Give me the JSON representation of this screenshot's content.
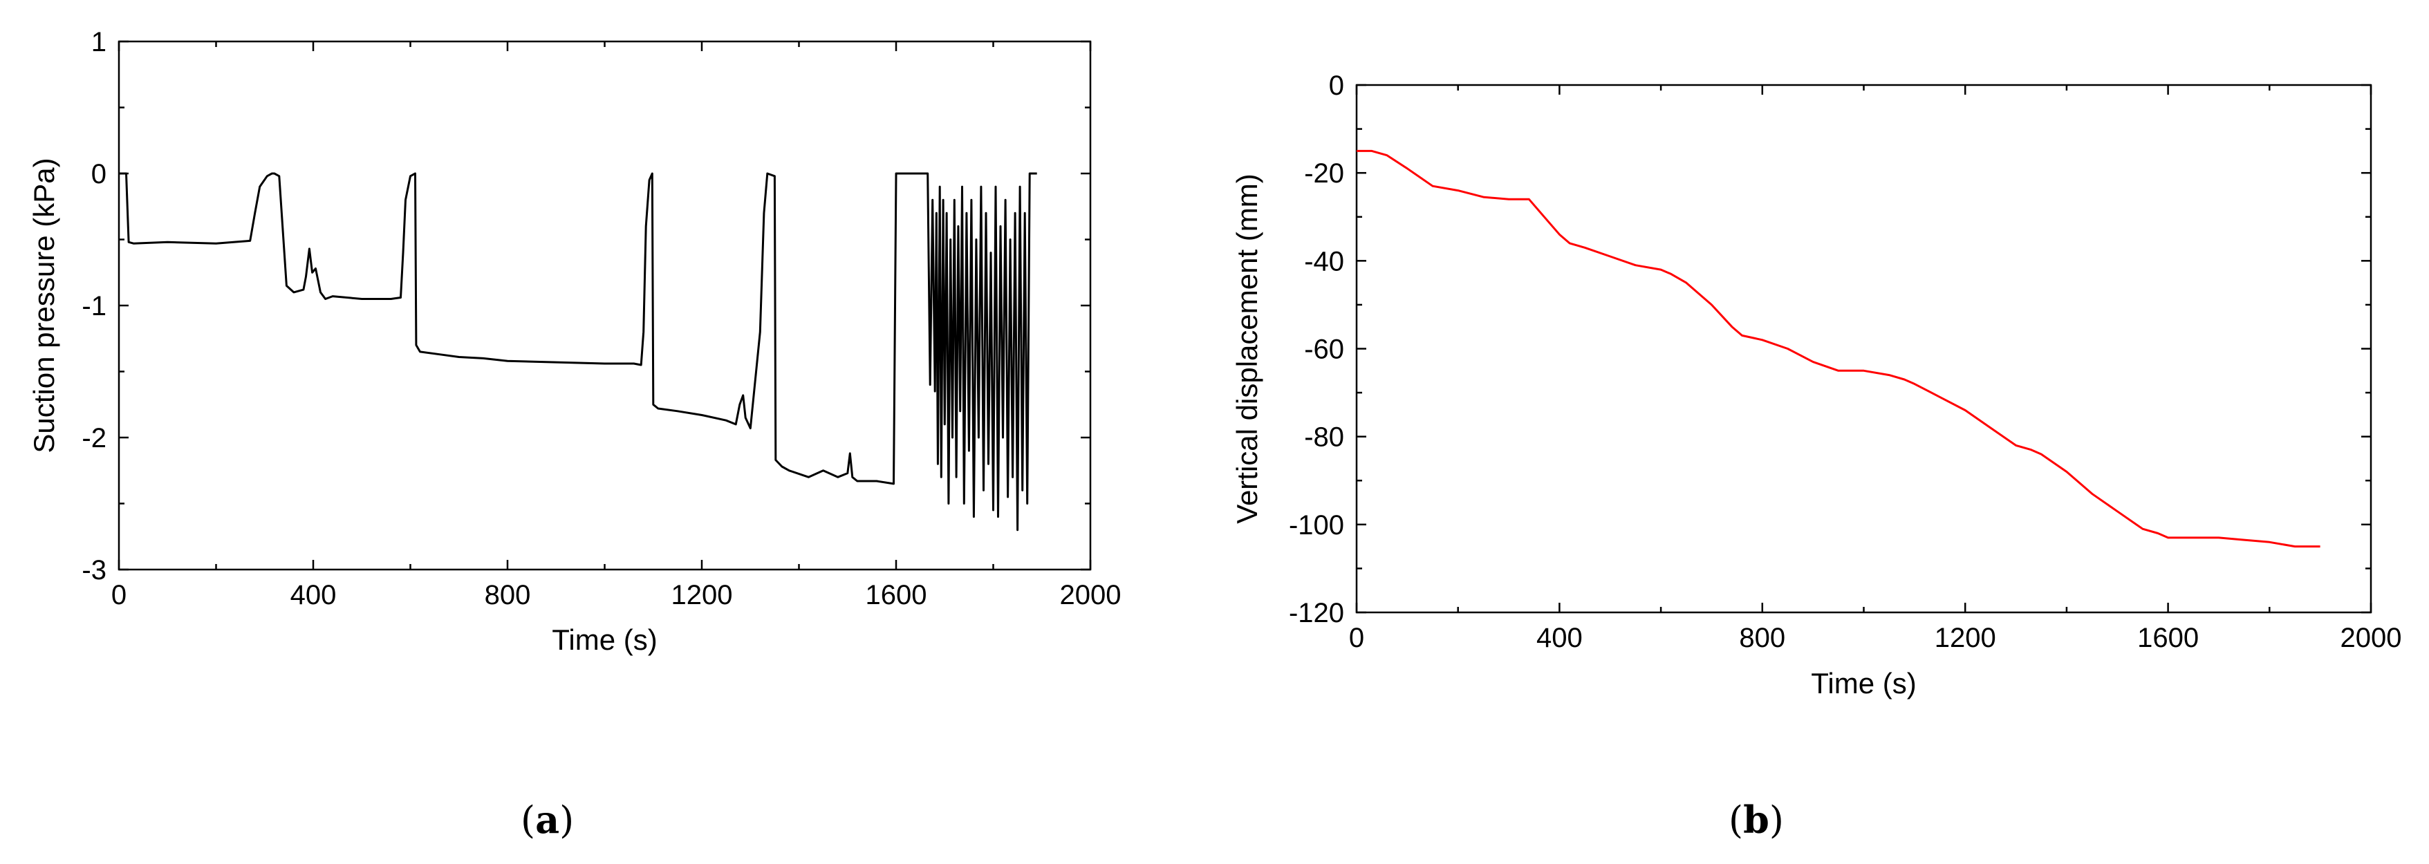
{
  "chart_data": [
    {
      "type": "line",
      "panel_label": {
        "open": "(",
        "letter": "a",
        "close": ")"
      },
      "xlabel": "Time (s)",
      "ylabel": "Suction pressure  (kPa)",
      "xlim": [
        0,
        2000
      ],
      "ylim": [
        -3,
        1
      ],
      "xticks": [
        0,
        400,
        800,
        1200,
        1600,
        2000
      ],
      "yticks": [
        -3,
        -2,
        -1,
        0,
        1
      ],
      "xtick_labels": [
        "0",
        "400",
        "800",
        "1200",
        "1600",
        "2000"
      ],
      "ytick_labels": [
        "-3",
        "-2",
        "-1",
        "0",
        "1"
      ],
      "color": "#000000",
      "series": [
        {
          "x": [
            0,
            15,
            20,
            30,
            100,
            200,
            270,
            280,
            290,
            305,
            315,
            320,
            330,
            345,
            360,
            380,
            385,
            392,
            398,
            405,
            415,
            425,
            440,
            500,
            560,
            580,
            585,
            590,
            600,
            610,
            612,
            620,
            660,
            700,
            750,
            800,
            900,
            1000,
            1060,
            1075,
            1080,
            1085,
            1092,
            1098,
            1100,
            1110,
            1150,
            1200,
            1250,
            1270,
            1278,
            1285,
            1290,
            1300,
            1320,
            1328,
            1335,
            1350,
            1352,
            1365,
            1380,
            1420,
            1450,
            1480,
            1500,
            1505,
            1510,
            1520,
            1560,
            1595,
            1600,
            1610,
            1640,
            1665,
            1670,
            1675,
            1680,
            1683,
            1686,
            1690,
            1693,
            1697,
            1700,
            1704,
            1708,
            1712,
            1716,
            1720,
            1724,
            1728,
            1732,
            1736,
            1740,
            1745,
            1750,
            1755,
            1760,
            1765,
            1770,
            1775,
            1780,
            1785,
            1790,
            1795,
            1800,
            1805,
            1810,
            1815,
            1820,
            1825,
            1830,
            1835,
            1840,
            1845,
            1850,
            1855,
            1860,
            1865,
            1870,
            1875,
            1880,
            1885,
            1890
          ],
          "y": [
            0,
            0,
            -0.52,
            -0.53,
            -0.52,
            -0.53,
            -0.51,
            -0.3,
            -0.1,
            -0.02,
            0,
            0,
            -0.02,
            -0.85,
            -0.9,
            -0.88,
            -0.78,
            -0.57,
            -0.75,
            -0.72,
            -0.9,
            -0.95,
            -0.93,
            -0.95,
            -0.95,
            -0.94,
            -0.6,
            -0.2,
            -0.02,
            0,
            -1.3,
            -1.35,
            -1.37,
            -1.39,
            -1.4,
            -1.42,
            -1.43,
            -1.44,
            -1.44,
            -1.45,
            -1.2,
            -0.4,
            -0.05,
            0,
            -1.75,
            -1.78,
            -1.8,
            -1.83,
            -1.87,
            -1.9,
            -1.75,
            -1.68,
            -1.85,
            -1.93,
            -1.2,
            -0.3,
            0,
            -0.02,
            -2.17,
            -2.22,
            -2.25,
            -2.3,
            -2.25,
            -2.3,
            -2.27,
            -2.12,
            -2.3,
            -2.33,
            -2.33,
            -2.35,
            0,
            0,
            0,
            0,
            -1.6,
            -0.2,
            -1.65,
            -0.3,
            -2.2,
            -0.1,
            -2.3,
            -0.2,
            -1.9,
            -0.3,
            -2.5,
            -0.5,
            -2.0,
            -0.2,
            -2.3,
            -0.4,
            -1.8,
            -0.1,
            -2.5,
            -0.3,
            -2.1,
            -0.2,
            -2.6,
            -0.5,
            -2.0,
            -0.1,
            -2.4,
            -0.3,
            -2.2,
            -0.6,
            -2.55,
            -0.1,
            -2.6,
            -0.4,
            -2.0,
            -0.2,
            -2.45,
            -0.5,
            -2.3,
            -0.3,
            -2.7,
            -0.1,
            -2.4,
            -0.3,
            -2.5,
            0,
            0,
            0,
            0
          ]
        }
      ]
    },
    {
      "type": "line",
      "panel_label": {
        "open": "(",
        "letter": "b",
        "close": ")"
      },
      "xlabel": "Time (s)",
      "ylabel": "Vertical displacement (mm)",
      "xlim": [
        0,
        2000
      ],
      "ylim": [
        -120,
        0
      ],
      "xticks": [
        0,
        400,
        800,
        1200,
        1600,
        2000
      ],
      "yticks": [
        -120,
        -100,
        -80,
        -60,
        -40,
        -20,
        0
      ],
      "xtick_labels": [
        "0",
        "400",
        "800",
        "1200",
        "1600",
        "2000"
      ],
      "ytick_labels": [
        "-120",
        "-100",
        "-80",
        "-60",
        "-40",
        "-20",
        "0"
      ],
      "color": "#ff0000",
      "series": [
        {
          "x": [
            0,
            30,
            60,
            100,
            150,
            200,
            250,
            300,
            340,
            370,
            400,
            420,
            450,
            500,
            550,
            600,
            620,
            650,
            700,
            740,
            760,
            800,
            850,
            900,
            950,
            1000,
            1050,
            1080,
            1100,
            1150,
            1200,
            1250,
            1300,
            1330,
            1350,
            1400,
            1450,
            1500,
            1550,
            1580,
            1600,
            1650,
            1700,
            1750,
            1800,
            1850,
            1900
          ],
          "y": [
            -15,
            -15,
            -16,
            -19,
            -23,
            -24,
            -25.5,
            -26,
            -26,
            -30,
            -34,
            -36,
            -37,
            -39,
            -41,
            -42,
            -43,
            -45,
            -50,
            -55,
            -57,
            -58,
            -60,
            -63,
            -65,
            -65,
            -66,
            -67,
            -68,
            -71,
            -74,
            -78,
            -82,
            -83,
            -84,
            -88,
            -93,
            -97,
            -101,
            -102,
            -103,
            -103,
            -103,
            -103.5,
            -104,
            -105,
            -105
          ]
        }
      ]
    }
  ]
}
